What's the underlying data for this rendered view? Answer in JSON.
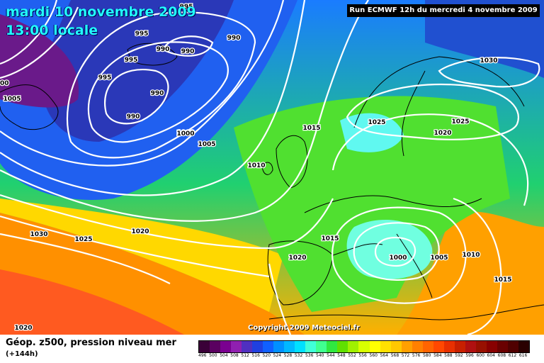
{
  "header": {
    "date": "mardi 10 novembre 2009",
    "time": "13:00 locale",
    "run": "Run ECMWF 12h du mercredi 4 novembre 2009"
  },
  "copyright": "Copyright 2009 Meteociel.fr",
  "footer": {
    "title": "Géop. z500, pression niveau mer",
    "subtitle": "(+144h)"
  },
  "legend": {
    "ticks": [
      "496",
      "500",
      "504",
      "508",
      "512",
      "516",
      "520",
      "524",
      "528",
      "532",
      "536",
      "540",
      "544",
      "548",
      "552",
      "556",
      "560",
      "564",
      "568",
      "572",
      "576",
      "580",
      "584",
      "588",
      "592",
      "596",
      "600",
      "604",
      "608",
      "612",
      "616"
    ],
    "colors": [
      "#3a0038",
      "#5a0060",
      "#7a0090",
      "#9020b0",
      "#5030c0",
      "#2040e0",
      "#1060ff",
      "#0090ff",
      "#00b8ff",
      "#00e0ff",
      "#40ffd8",
      "#40ff90",
      "#30e840",
      "#60e000",
      "#a0f000",
      "#d8ff00",
      "#ffff00",
      "#ffe000",
      "#ffc800",
      "#ffa000",
      "#ff8000",
      "#ff6400",
      "#ff4800",
      "#e83000",
      "#c82000",
      "#b01010",
      "#981000",
      "#880000",
      "#6a0000",
      "#500000",
      "#2a0000"
    ]
  },
  "isobars": [
    {
      "label": "1000"
    },
    {
      "label": "995"
    },
    {
      "label": "990"
    },
    {
      "label": "995"
    },
    {
      "label": "990"
    },
    {
      "label": "990"
    },
    {
      "label": "995"
    },
    {
      "label": "990"
    },
    {
      "label": "990"
    },
    {
      "label": "1000"
    },
    {
      "label": "1005"
    },
    {
      "label": "995"
    },
    {
      "label": "1000"
    },
    {
      "label": "1005"
    },
    {
      "label": "1010"
    },
    {
      "label": "1015"
    },
    {
      "label": "1025"
    },
    {
      "label": "1020"
    },
    {
      "label": "1025"
    },
    {
      "label": "1030"
    },
    {
      "label": "1030"
    },
    {
      "label": "1025"
    },
    {
      "label": "1020"
    },
    {
      "label": "1020"
    },
    {
      "label": "1015"
    },
    {
      "label": "1000"
    },
    {
      "label": "1005"
    },
    {
      "label": "1010"
    },
    {
      "label": "1015"
    },
    {
      "label": "1020"
    }
  ]
}
